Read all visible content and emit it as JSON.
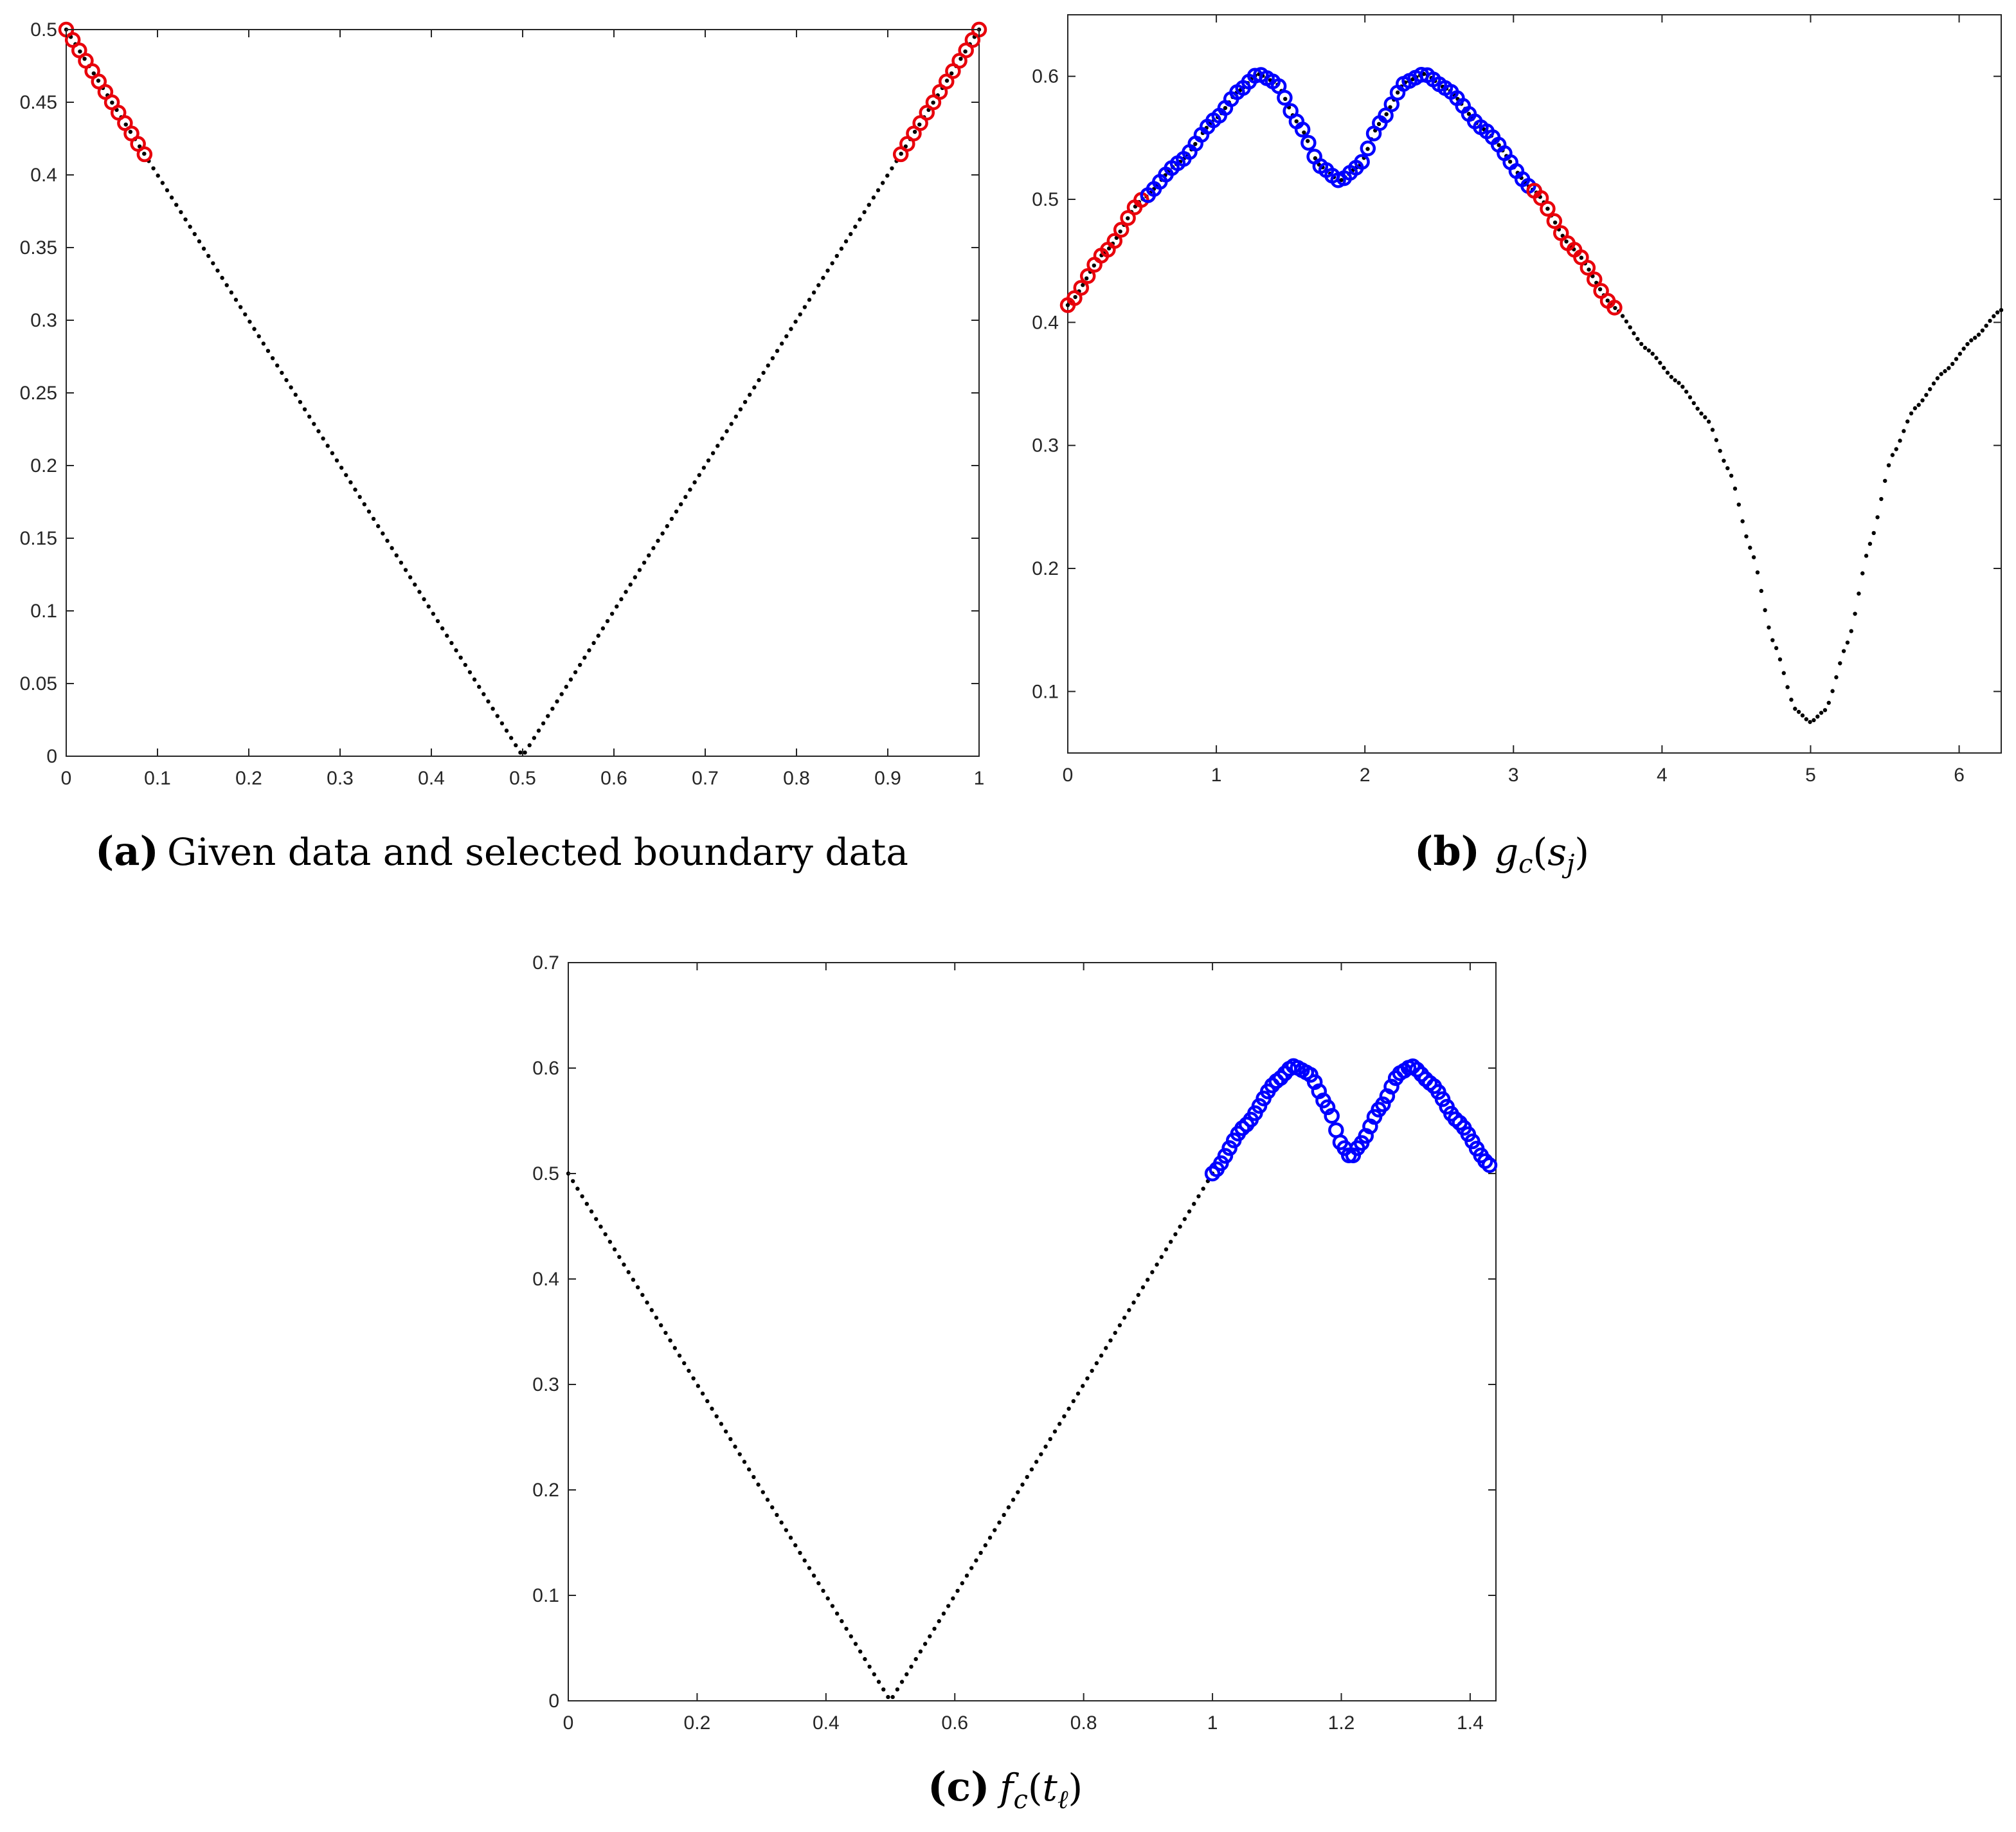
{
  "figure": {
    "colors": {
      "axis": "#262626",
      "black": "#000000",
      "red": "#e8000b",
      "blue": "#0000ff"
    },
    "icons": [
      "none"
    ]
  },
  "chart_data": [
    {
      "id": "a",
      "type": "scatter",
      "caption": {
        "label": "(a)",
        "text": "Given data and selected boundary data"
      },
      "xlim": [
        0,
        1
      ],
      "ylim": [
        0,
        0.5
      ],
      "xticks": [
        "0",
        "0.1",
        "0.2",
        "0.3",
        "0.4",
        "0.5",
        "0.6",
        "0.7",
        "0.8",
        "0.9",
        "1"
      ],
      "yticks": [
        "0",
        "0.05",
        "0.1",
        "0.15",
        "0.2",
        "0.25",
        "0.3",
        "0.35",
        "0.4",
        "0.45",
        "0.5"
      ],
      "grid": false,
      "series": [
        {
          "style": "black-dots",
          "function": "abs(x-0.5)",
          "x_range": [
            0,
            1
          ],
          "count": 200
        },
        {
          "style": "red-circles",
          "function": "abs(x-0.5)",
          "x_range": [
            0,
            0.0858
          ],
          "count": 13
        },
        {
          "style": "red-circles",
          "function": "abs(x-0.5)",
          "x_range": [
            0.9142,
            1
          ],
          "count": 13
        }
      ]
    },
    {
      "id": "b",
      "type": "scatter",
      "caption": {
        "label": "(b)",
        "text": "g_c(s_j)"
      },
      "xlim": [
        0,
        6.2832
      ],
      "ylim": [
        0.05,
        0.65
      ],
      "xticks": [
        "0",
        "1",
        "2",
        "3",
        "4",
        "5",
        "6"
      ],
      "yticks": [
        "0.1",
        "0.2",
        "0.3",
        "0.4",
        "0.5",
        "0.6"
      ],
      "grid": false,
      "curve_points": [
        [
          0,
          0.414
        ],
        [
          0.25,
          0.457
        ],
        [
          0.5,
          0.5
        ],
        [
          0.75,
          0.53
        ],
        [
          1.0,
          0.566
        ],
        [
          1.15,
          0.588
        ],
        [
          1.28,
          0.602
        ],
        [
          1.4,
          0.595
        ],
        [
          1.55,
          0.562
        ],
        [
          1.7,
          0.527
        ],
        [
          1.83,
          0.515
        ],
        [
          1.96,
          0.527
        ],
        [
          2.1,
          0.562
        ],
        [
          2.27,
          0.595
        ],
        [
          2.4,
          0.602
        ],
        [
          2.55,
          0.59
        ],
        [
          2.8,
          0.557
        ],
        [
          3.14,
          0.507
        ],
        [
          3.4,
          0.46
        ],
        [
          3.68,
          0.412
        ],
        [
          3.9,
          0.378
        ],
        [
          4.1,
          0.352
        ],
        [
          4.3,
          0.322
        ],
        [
          4.45,
          0.28
        ],
        [
          4.6,
          0.215
        ],
        [
          4.75,
          0.14
        ],
        [
          4.9,
          0.085
        ],
        [
          5.0,
          0.075
        ],
        [
          5.1,
          0.085
        ],
        [
          5.25,
          0.14
        ],
        [
          5.4,
          0.22
        ],
        [
          5.55,
          0.292
        ],
        [
          5.7,
          0.33
        ],
        [
          5.9,
          0.36
        ],
        [
          6.1,
          0.387
        ],
        [
          6.28,
          0.41
        ]
      ],
      "series": [
        {
          "style": "black-dots",
          "x_range": [
            0,
            6.2832
          ],
          "count": 250
        },
        {
          "style": "red-circles",
          "x_range": [
            0,
            0.54
          ],
          "count": 13
        },
        {
          "style": "blue-circles",
          "x_range": [
            0.54,
            3.14
          ],
          "count": 66
        },
        {
          "style": "red-circles",
          "x_range": [
            3.14,
            3.68
          ],
          "count": 13
        }
      ]
    },
    {
      "id": "c",
      "type": "scatter",
      "caption": {
        "label": "(c)",
        "text": "f_c(t_ℓ)"
      },
      "xlim": [
        0,
        1.44
      ],
      "ylim": [
        0,
        0.7
      ],
      "xticks": [
        "0",
        "0.2",
        "0.4",
        "0.6",
        "0.8",
        "1",
        "1.2",
        "1.4"
      ],
      "yticks": [
        "0",
        "0.1",
        "0.2",
        "0.3",
        "0.4",
        "0.5",
        "0.6",
        "0.7"
      ],
      "grid": false,
      "curve_points": [
        [
          1.0,
          0.5
        ],
        [
          1.05,
          0.545
        ],
        [
          1.1,
          0.588
        ],
        [
          1.125,
          0.602
        ],
        [
          1.15,
          0.595
        ],
        [
          1.18,
          0.562
        ],
        [
          1.2,
          0.528
        ],
        [
          1.215,
          0.515
        ],
        [
          1.23,
          0.528
        ],
        [
          1.26,
          0.562
        ],
        [
          1.29,
          0.595
        ],
        [
          1.31,
          0.602
        ],
        [
          1.34,
          0.585
        ],
        [
          1.38,
          0.55
        ],
        [
          1.43,
          0.508
        ]
      ],
      "series": [
        {
          "style": "black-dots",
          "function": "abs(x-0.5)",
          "x_range": [
            0,
            1.0
          ],
          "count": 140
        },
        {
          "style": "blue-circles",
          "x_range": [
            1.0,
            1.43
          ],
          "count": 66
        }
      ]
    }
  ]
}
